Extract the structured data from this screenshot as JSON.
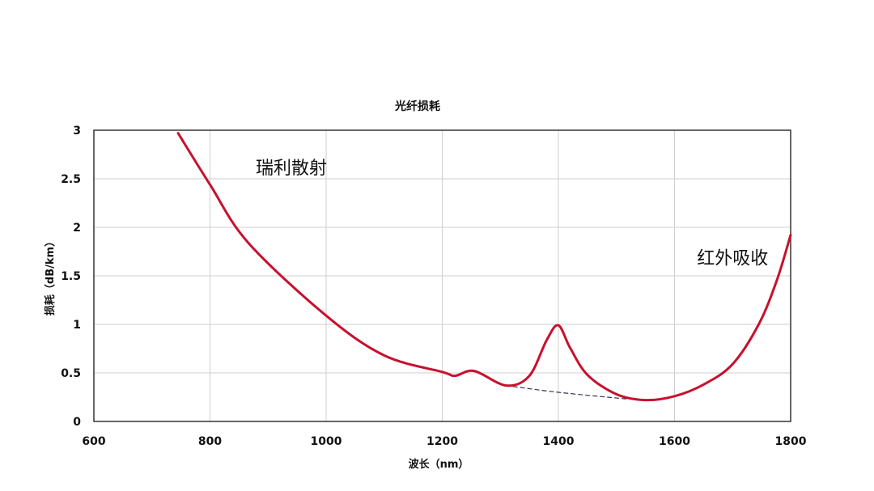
{
  "chart_data": {
    "type": "line",
    "title": "光纤损耗",
    "xlabel": "波长（nm）",
    "ylabel": "损耗（dB/km）",
    "xlim": [
      600,
      1800
    ],
    "ylim": [
      0,
      3
    ],
    "xticks": [
      "600",
      "800",
      "1000",
      "1200",
      "1400",
      "1600",
      "1800"
    ],
    "yticks": [
      "0",
      "0.5",
      "1",
      "1.5",
      "2",
      "2.5",
      "3"
    ],
    "xtick_values": [
      600,
      800,
      1000,
      1200,
      1400,
      1600,
      1800
    ],
    "ytick_values": [
      0,
      0.5,
      1,
      1.5,
      2,
      2.5,
      3
    ],
    "grid": true,
    "series": [
      {
        "color": "#c8102e",
        "x": [
          745,
          800,
          866,
          1000,
          1100,
          1200,
          1222,
          1255,
          1310,
          1350,
          1380,
          1400,
          1420,
          1450,
          1500,
          1550,
          1600,
          1650,
          1700,
          1745,
          1776,
          1800
        ],
        "y": [
          2.97,
          2.44,
          1.84,
          1.09,
          0.68,
          0.51,
          0.47,
          0.52,
          0.37,
          0.47,
          0.84,
          0.99,
          0.76,
          0.48,
          0.28,
          0.22,
          0.26,
          0.38,
          0.59,
          1.0,
          1.45,
          1.92
        ]
      },
      {
        "style": "dashed",
        "color": "#333355",
        "x": [
          1310,
          1400,
          1520
        ],
        "y": [
          0.37,
          0.3,
          0.23
        ]
      }
    ],
    "annotations": [
      {
        "text": "瑞利散射",
        "x": 940,
        "y": 2.55
      },
      {
        "text": "红外吸收",
        "x": 1700,
        "y": 1.62
      }
    ]
  }
}
